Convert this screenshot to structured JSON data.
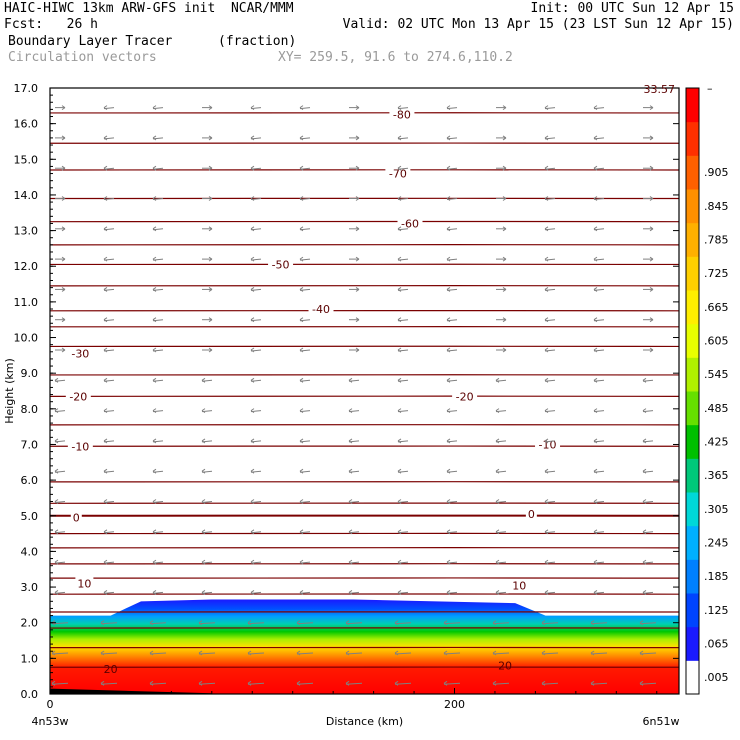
{
  "header": {
    "title_left": "HAIC-HIWC 13km ARW-GFS init  NCAR/MMM",
    "init": "Init: 00 UTC Sun 12 Apr 15",
    "fcst": "Fcst:   26 h",
    "valid": "Valid: 02 UTC Mon 13 Apr 15 (23 LST Sun 12 Apr 15)",
    "field": "Boundary Layer Tracer",
    "units": "(fraction)",
    "vectors": "Circulation vectors",
    "xy": "XY= 259.5, 91.6 to 274.6,110.2"
  },
  "colors": {
    "contour": "#7a0000",
    "arrow": "#808080",
    "colorbar": [
      "#ffffff",
      "#1a1aff",
      "#0044ff",
      "#0080ff",
      "#00b0ff",
      "#00d8d8",
      "#00c87a",
      "#00c000",
      "#66e000",
      "#b0f000",
      "#e8ff00",
      "#ffee00",
      "#ffd000",
      "#ffb000",
      "#ff9000",
      "#ff6000",
      "#ff3000",
      "#ff0000"
    ]
  },
  "chart_data": {
    "type": "heatmap",
    "title": "Boundary Layer Tracer",
    "subtitle": "Circulation vectors",
    "xlabel": "Distance (km)",
    "ylabel": "Height (km)",
    "xlim": [
      0,
      311
    ],
    "ylim": [
      0,
      17
    ],
    "x_ticks": [
      {
        "value": 0,
        "label": "0"
      },
      {
        "value": 200,
        "label": "200"
      }
    ],
    "x_endpoints": {
      "left": "4n53w",
      "right": "6n51w"
    },
    "y_ticks": [
      {
        "value": 0,
        "label": "0.0"
      },
      {
        "value": 1,
        "label": "1.0"
      },
      {
        "value": 2,
        "label": "2.0"
      },
      {
        "value": 3,
        "label": "3.0"
      },
      {
        "value": 4,
        "label": "4.0"
      },
      {
        "value": 5,
        "label": "5.0"
      },
      {
        "value": 6,
        "label": "6.0"
      },
      {
        "value": 7,
        "label": "7.0"
      },
      {
        "value": 8,
        "label": "8.0"
      },
      {
        "value": 9,
        "label": "9.0"
      },
      {
        "value": 10,
        "label": "10.0"
      },
      {
        "value": 11,
        "label": "11.0"
      },
      {
        "value": 12,
        "label": "12.0"
      },
      {
        "value": 13,
        "label": "13.0"
      },
      {
        "value": 14,
        "label": "14.0"
      },
      {
        "value": 15,
        "label": "15.0"
      },
      {
        "value": 16,
        "label": "16.0"
      },
      {
        "value": 17,
        "label": "17.0"
      }
    ],
    "colorbar_labels": [
      ".005",
      ".065",
      ".125",
      ".185",
      ".245",
      ".305",
      ".365",
      ".425",
      ".485",
      ".545",
      ".605",
      ".665",
      ".725",
      ".785",
      ".845",
      ".905"
    ],
    "colorbar_top_label": "–",
    "corner_label": "33.57",
    "boundary_layer_top_km": [
      {
        "x": 0,
        "h": 2.2
      },
      {
        "x": 30,
        "h": 2.2
      },
      {
        "x": 45,
        "h": 2.6
      },
      {
        "x": 80,
        "h": 2.65
      },
      {
        "x": 150,
        "h": 2.65
      },
      {
        "x": 230,
        "h": 2.55
      },
      {
        "x": 245,
        "h": 2.2
      },
      {
        "x": 311,
        "h": 2.2
      }
    ],
    "isotherm_heights_km": [
      0.75,
      1.3,
      1.85,
      2.3,
      2.8,
      3.25,
      3.65,
      4.1,
      4.5,
      5.0,
      5.35,
      5.95,
      6.95,
      7.55,
      8.35,
      8.95,
      9.75,
      10.3,
      10.75,
      11.45,
      12.05,
      12.6,
      13.25,
      13.9,
      14.7,
      15.45,
      16.3
    ],
    "contour_labels": [
      {
        "x": 30,
        "h": 0.7,
        "label": "20"
      },
      {
        "x": 225,
        "h": 0.8,
        "label": "20"
      },
      {
        "x": 17,
        "h": 3.1,
        "label": "10"
      },
      {
        "x": 232,
        "h": 3.05,
        "label": "10"
      },
      {
        "x": 13,
        "h": 4.95,
        "label": "0"
      },
      {
        "x": 238,
        "h": 5.05,
        "label": "0"
      },
      {
        "x": 15,
        "h": 6.95,
        "label": "-10"
      },
      {
        "x": 246,
        "h": 7.0,
        "label": "-10"
      },
      {
        "x": 14,
        "h": 8.35,
        "label": "-20"
      },
      {
        "x": 205,
        "h": 8.35,
        "label": "-20"
      },
      {
        "x": 15,
        "h": 9.55,
        "label": "-30"
      },
      {
        "x": 134,
        "h": 10.8,
        "label": "-40"
      },
      {
        "x": 114,
        "h": 12.05,
        "label": "-50"
      },
      {
        "x": 178,
        "h": 13.2,
        "label": "-60"
      },
      {
        "x": 172,
        "h": 14.6,
        "label": "-70"
      },
      {
        "x": 174,
        "h": 16.25,
        "label": "-80"
      }
    ]
  }
}
